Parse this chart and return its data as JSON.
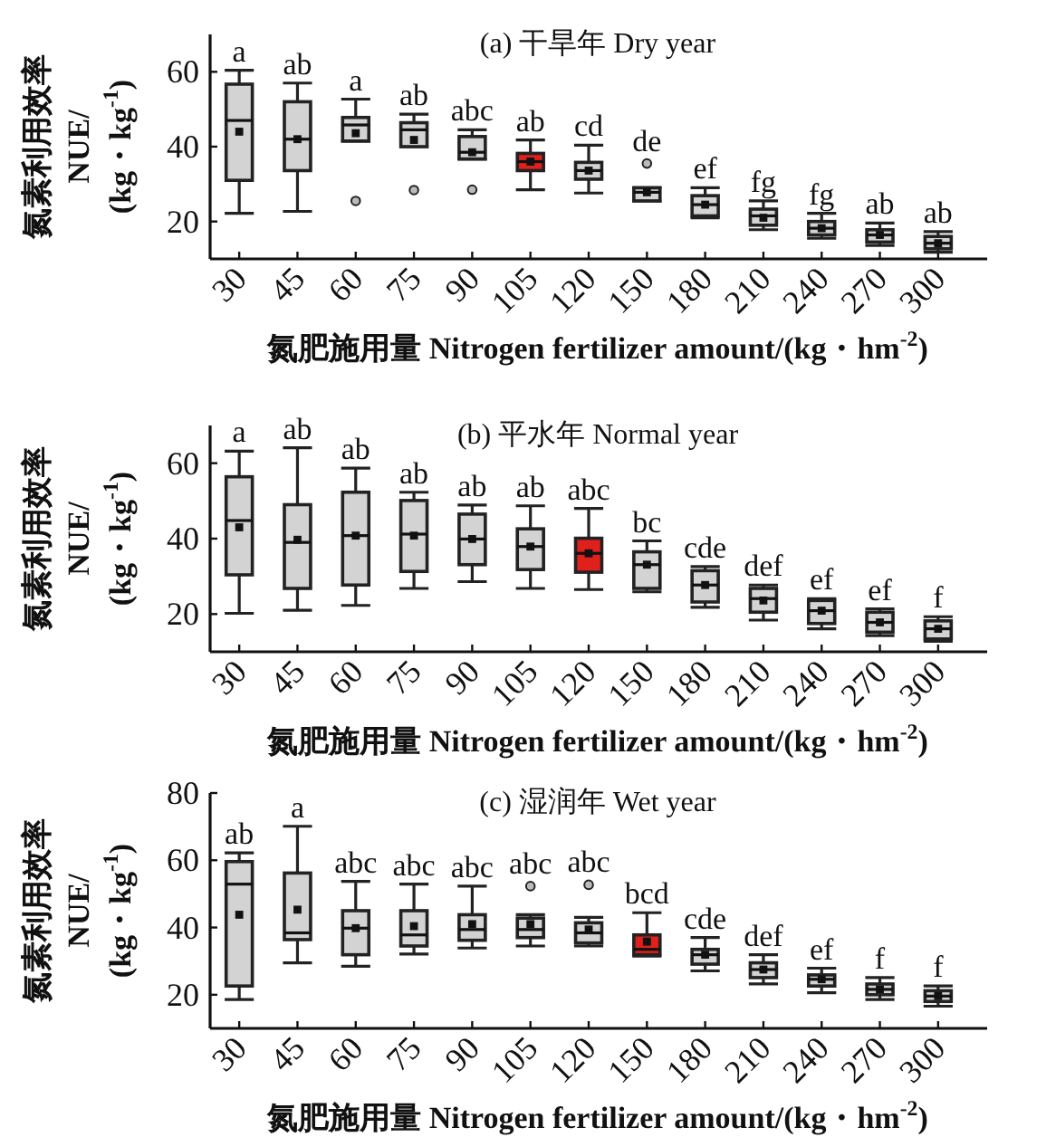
{
  "chart_data": [
    {
      "type": "box",
      "title": "(a) 干旱年 Dry year",
      "xlabel": "氮肥施用量 Nitrogen fertilizer amount/(kg・hm$^{-2}$)",
      "ylabel": "氮素利用效率 NUE/(kg・kg$^{-1}$)",
      "categories": [
        "30",
        "45",
        "60",
        "75",
        "90",
        "105",
        "120",
        "150",
        "180",
        "210",
        "240",
        "270",
        "300"
      ],
      "colors": [
        "#d3d3d3",
        "#d3d3d3",
        "#d3d3d3",
        "#d3d3d3",
        "#d3d3d3",
        "#e0201b",
        "#d3d3d3",
        "#d3d3d3",
        "#d3d3d3",
        "#d3d3d3",
        "#d3d3d3",
        "#d3d3d3",
        "#d3d3d3"
      ],
      "boxes": [
        {
          "low": 22.2,
          "q1": 31,
          "median": 47,
          "q3": 56.7,
          "high": 60.4,
          "mean": 44
        },
        {
          "low": 22.7,
          "q1": 33.6,
          "median": 42,
          "q3": 52,
          "high": 57,
          "mean": 42
        },
        {
          "low": 41.5,
          "q1": 41.5,
          "median": 45.8,
          "q3": 47.8,
          "high": 52.7,
          "mean": 43.6,
          "outliers": [
            25.5
          ]
        },
        {
          "low": 40,
          "q1": 40,
          "median": 44.5,
          "q3": 46.4,
          "high": 48.7,
          "mean": 41.8,
          "outliers": [
            28.4
          ]
        },
        {
          "low": 36.7,
          "q1": 36.7,
          "median": 38.5,
          "q3": 42.7,
          "high": 44.5,
          "mean": 38.5,
          "outliers": [
            28.5
          ]
        },
        {
          "low": 28.5,
          "q1": 33.6,
          "median": 36,
          "q3": 38.2,
          "high": 41.8,
          "mean": 36
        },
        {
          "low": 27.6,
          "q1": 31.3,
          "median": 33.6,
          "q3": 35.8,
          "high": 40.4,
          "mean": 33.6
        },
        {
          "low": 25.5,
          "q1": 25.5,
          "median": 27.8,
          "q3": 29,
          "high": 29,
          "mean": 27.8,
          "outliers": [
            35.5
          ]
        },
        {
          "low": 21,
          "q1": 21.5,
          "median": 24.5,
          "q3": 26.9,
          "high": 29,
          "mean": 24.5
        },
        {
          "low": 17.8,
          "q1": 19,
          "median": 21.5,
          "q3": 23.3,
          "high": 25.5,
          "mean": 21
        },
        {
          "low": 15.5,
          "q1": 16.4,
          "median": 18.2,
          "q3": 20,
          "high": 22.2,
          "mean": 18.2
        },
        {
          "low": 13.6,
          "q1": 14.5,
          "median": 16.4,
          "q3": 17.8,
          "high": 19.6,
          "mean": 16.4
        },
        {
          "low": 11.8,
          "q1": 12.7,
          "median": 14.2,
          "q3": 16,
          "high": 17.3,
          "mean": 14.2
        }
      ],
      "ylim": [
        10,
        70
      ],
      "yticks": [
        20,
        40,
        60
      ],
      "annotations": [
        {
          "text": "a",
          "x": "30",
          "y": 60.4
        },
        {
          "text": "ab",
          "x": "45",
          "y": 57
        },
        {
          "text": "a",
          "x": "60",
          "y": 52.7
        },
        {
          "text": "ab",
          "x": "75",
          "y": 48.7
        },
        {
          "text": "abc",
          "x": "90",
          "y": 44.5
        },
        {
          "text": "ab",
          "x": "105",
          "y": 41.8
        },
        {
          "text": "cd",
          "x": "120",
          "y": 40.4
        },
        {
          "text": "de",
          "x": "150",
          "y": 29
        },
        {
          "text": "ef",
          "x": "180",
          "y": 29
        },
        {
          "text": "fg",
          "x": "210",
          "y": 25.5
        },
        {
          "text": "fg",
          "x": "240",
          "y": 22.2
        },
        {
          "text": "ab",
          "x": "270",
          "y": 19.6
        },
        {
          "text": "ab",
          "x": "300",
          "y": 17.3
        }
      ]
    },
    {
      "type": "box",
      "title": "(b) 平水年 Normal year",
      "xlabel": "氮肥施用量 Nitrogen fertilizer amount/(kg・hm$^{-2}$)",
      "ylabel": "氮素利用效率 NUE/(kg・kg$^{-1}$)",
      "categories": [
        "30",
        "45",
        "60",
        "75",
        "90",
        "105",
        "120",
        "150",
        "180",
        "210",
        "240",
        "270",
        "300"
      ],
      "colors": [
        "#d3d3d3",
        "#d3d3d3",
        "#d3d3d3",
        "#d3d3d3",
        "#d3d3d3",
        "#d3d3d3",
        "#e0201b",
        "#d3d3d3",
        "#d3d3d3",
        "#d3d3d3",
        "#d3d3d3",
        "#d3d3d3",
        "#d3d3d3"
      ],
      "boxes": [
        {
          "low": 20.2,
          "q1": 30.4,
          "median": 44.8,
          "q3": 56.4,
          "high": 63.2,
          "mean": 43
        },
        {
          "low": 21,
          "q1": 26.8,
          "median": 39,
          "q3": 49,
          "high": 64.1,
          "mean": 39.7
        },
        {
          "low": 22.3,
          "q1": 27.7,
          "median": 40.8,
          "q3": 52.3,
          "high": 58.7,
          "mean": 40.8
        },
        {
          "low": 26.8,
          "q1": 31.3,
          "median": 41.2,
          "q3": 50.1,
          "high": 52.3,
          "mean": 40.8
        },
        {
          "low": 28.6,
          "q1": 33.1,
          "median": 39.9,
          "q3": 46.5,
          "high": 48.9,
          "mean": 39.9
        },
        {
          "low": 26.8,
          "q1": 31.8,
          "median": 37.9,
          "q3": 42.6,
          "high": 48.7,
          "mean": 37.9
        },
        {
          "low": 26.5,
          "q1": 31.1,
          "median": 36.1,
          "q3": 40.1,
          "high": 48,
          "mean": 36.1
        },
        {
          "low": 25.9,
          "q1": 26.8,
          "median": 33.1,
          "q3": 36.5,
          "high": 39.4,
          "mean": 33.1
        },
        {
          "low": 21.8,
          "q1": 23.2,
          "median": 27.7,
          "q3": 31.5,
          "high": 32.6,
          "mean": 27.7
        },
        {
          "low": 18.4,
          "q1": 20.5,
          "median": 24.1,
          "q3": 26.8,
          "high": 27.7,
          "mean": 23.6
        },
        {
          "low": 16.1,
          "q1": 17.5,
          "median": 20.9,
          "q3": 23.6,
          "high": 24.1,
          "mean": 20.9
        },
        {
          "low": 14.3,
          "q1": 15.2,
          "median": 17.8,
          "q3": 20.5,
          "high": 21.4,
          "mean": 17.8
        },
        {
          "low": 12.8,
          "q1": 13.4,
          "median": 16.1,
          "q3": 18.2,
          "high": 19.3,
          "mean": 16.1
        }
      ],
      "ylim": [
        10,
        70
      ],
      "yticks": [
        20,
        40,
        60
      ],
      "annotations": [
        {
          "text": "a",
          "x": "30",
          "y": 63.2
        },
        {
          "text": "ab",
          "x": "45",
          "y": 64.1
        },
        {
          "text": "ab",
          "x": "60",
          "y": 58.7
        },
        {
          "text": "ab",
          "x": "75",
          "y": 52.3
        },
        {
          "text": "ab",
          "x": "90",
          "y": 48.9
        },
        {
          "text": "ab",
          "x": "105",
          "y": 48.7
        },
        {
          "text": "abc",
          "x": "120",
          "y": 48
        },
        {
          "text": "bc",
          "x": "150",
          "y": 39.4
        },
        {
          "text": "cde",
          "x": "180",
          "y": 32.6
        },
        {
          "text": "def",
          "x": "210",
          "y": 27.7
        },
        {
          "text": "ef",
          "x": "240",
          "y": 24.1
        },
        {
          "text": "ef",
          "x": "270",
          "y": 21.4
        },
        {
          "text": "f",
          "x": "300",
          "y": 19.3
        }
      ]
    },
    {
      "type": "box",
      "title": "(c) 湿润年 Wet year",
      "xlabel": "氮肥施用量 Nitrogen fertilizer amount/(kg・hm$^{-2}$)",
      "ylabel": "氮素利用效率 NUE/(kg・kg$^{-1}$)",
      "categories": [
        "30",
        "45",
        "60",
        "75",
        "90",
        "105",
        "120",
        "150",
        "180",
        "210",
        "240",
        "270",
        "300"
      ],
      "colors": [
        "#d3d3d3",
        "#d3d3d3",
        "#d3d3d3",
        "#d3d3d3",
        "#d3d3d3",
        "#d3d3d3",
        "#d3d3d3",
        "#e0201b",
        "#d3d3d3",
        "#d3d3d3",
        "#d3d3d3",
        "#d3d3d3",
        "#d3d3d3"
      ],
      "boxes": [
        {
          "low": 18.6,
          "q1": 22.6,
          "median": 52.9,
          "q3": 59.6,
          "high": 62.2,
          "mean": 43.8
        },
        {
          "low": 29.5,
          "q1": 36.4,
          "median": 38.4,
          "q3": 56.2,
          "high": 70.1,
          "mean": 45.3
        },
        {
          "low": 28.5,
          "q1": 31.9,
          "median": 39.8,
          "q3": 45,
          "high": 53.7,
          "mean": 39.8
        },
        {
          "low": 32.1,
          "q1": 34.5,
          "median": 37.8,
          "q3": 45,
          "high": 52.9,
          "mean": 40.4
        },
        {
          "low": 33.9,
          "q1": 36.2,
          "median": 39.4,
          "q3": 43.8,
          "high": 52.3,
          "mean": 41
        },
        {
          "low": 34.5,
          "q1": 37,
          "median": 39.4,
          "q3": 42.8,
          "high": 43.8,
          "mean": 41,
          "outliers": [
            52.3
          ]
        },
        {
          "low": 34.5,
          "q1": 35.4,
          "median": 38.4,
          "q3": 41.4,
          "high": 43,
          "mean": 39.4,
          "outliers": [
            52.7
          ]
        },
        {
          "low": 31.5,
          "q1": 31.9,
          "median": 33.5,
          "q3": 37.8,
          "high": 44.4,
          "mean": 35.8
        },
        {
          "low": 27.1,
          "q1": 29.1,
          "median": 31.9,
          "q3": 33.5,
          "high": 37,
          "mean": 31.9
        },
        {
          "low": 23.2,
          "q1": 25.1,
          "median": 27.5,
          "q3": 29.5,
          "high": 31.9,
          "mean": 27.5
        },
        {
          "low": 20.6,
          "q1": 22.6,
          "median": 24.6,
          "q3": 25.9,
          "high": 27.9,
          "mean": 24.6
        },
        {
          "low": 18.6,
          "q1": 20,
          "median": 21.6,
          "q3": 23.2,
          "high": 25.1,
          "mean": 21.6
        },
        {
          "low": 16.6,
          "q1": 18,
          "median": 19.6,
          "q3": 21.2,
          "high": 22.6,
          "mean": 19.6
        }
      ],
      "ylim": [
        10,
        80
      ],
      "yticks": [
        20,
        40,
        60,
        80
      ],
      "annotations": [
        {
          "text": "ab",
          "x": "30",
          "y": 62.2
        },
        {
          "text": "a",
          "x": "45",
          "y": 70.1
        },
        {
          "text": "abc",
          "x": "60",
          "y": 53.7
        },
        {
          "text": "abc",
          "x": "75",
          "y": 52.9
        },
        {
          "text": "abc",
          "x": "90",
          "y": 52.3
        },
        {
          "text": "abc",
          "x": "105",
          "y": 43.8
        },
        {
          "text": "abc",
          "x": "120",
          "y": 43
        },
        {
          "text": "bcd",
          "x": "150",
          "y": 44.4
        },
        {
          "text": "cde",
          "x": "180",
          "y": 37
        },
        {
          "text": "def",
          "x": "210",
          "y": 31.9
        },
        {
          "text": "ef",
          "x": "240",
          "y": 27.9
        },
        {
          "text": "f",
          "x": "270",
          "y": 25.1
        },
        {
          "text": "f",
          "x": "300",
          "y": 22.6
        }
      ]
    }
  ]
}
